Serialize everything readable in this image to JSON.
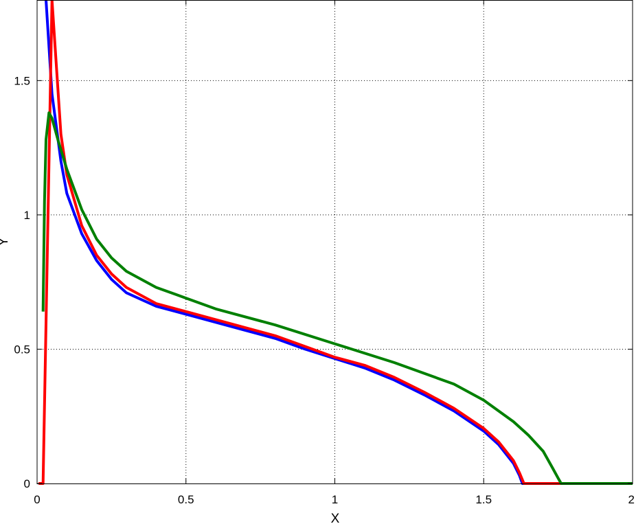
{
  "chart_data": {
    "type": "line",
    "title": "",
    "xlabel": "X",
    "ylabel": "Y",
    "xlim": [
      0,
      2
    ],
    "ylim": [
      0,
      1.8
    ],
    "xticks": [
      0,
      0.5,
      1,
      1.5,
      2
    ],
    "xtick_labels": [
      "0",
      "0.5",
      "1",
      "1.5",
      "2"
    ],
    "yticks": [
      0,
      0.5,
      1,
      1.5
    ],
    "ytick_labels": [
      "0",
      "0.5",
      "1",
      "1.5"
    ],
    "grid": true,
    "legend": "none",
    "series": [
      {
        "color": "#0000ff",
        "x": [
          0.03,
          0.05,
          0.08,
          0.1,
          0.15,
          0.2,
          0.25,
          0.3,
          0.4,
          0.5,
          0.6,
          0.7,
          0.8,
          0.9,
          1.0,
          1.1,
          1.2,
          1.3,
          1.4,
          1.5,
          1.55,
          1.6,
          1.62,
          1.63,
          1.65,
          2.0
        ],
        "y": [
          1.8,
          1.45,
          1.2,
          1.08,
          0.93,
          0.83,
          0.76,
          0.71,
          0.66,
          0.63,
          0.6,
          0.57,
          0.54,
          0.5,
          0.465,
          0.43,
          0.385,
          0.33,
          0.27,
          0.195,
          0.145,
          0.075,
          0.03,
          0.0,
          0.0,
          0.0
        ]
      },
      {
        "color": "#ff0000",
        "x": [
          0.005,
          0.02,
          0.05,
          0.08,
          0.1,
          0.15,
          0.2,
          0.25,
          0.3,
          0.4,
          0.5,
          0.6,
          0.7,
          0.8,
          0.9,
          1.0,
          1.1,
          1.2,
          1.3,
          1.4,
          1.5,
          1.55,
          1.6,
          1.62,
          1.635,
          1.65,
          2.0
        ],
        "y": [
          0.0,
          0.0,
          1.8,
          1.3,
          1.15,
          0.96,
          0.85,
          0.78,
          0.73,
          0.67,
          0.64,
          0.61,
          0.58,
          0.55,
          0.51,
          0.47,
          0.44,
          0.395,
          0.34,
          0.28,
          0.205,
          0.155,
          0.085,
          0.04,
          0.0,
          0.0,
          0.0
        ]
      },
      {
        "color": "#008000",
        "x": [
          0.02,
          0.025,
          0.03,
          0.04,
          0.05,
          0.07,
          0.1,
          0.15,
          0.2,
          0.25,
          0.3,
          0.4,
          0.5,
          0.6,
          0.8,
          1.0,
          1.2,
          1.4,
          1.5,
          1.6,
          1.65,
          1.7,
          1.73,
          1.75,
          1.76,
          2.0
        ],
        "y": [
          0.64,
          1.05,
          1.28,
          1.38,
          1.36,
          1.28,
          1.17,
          1.02,
          0.91,
          0.84,
          0.79,
          0.73,
          0.69,
          0.65,
          0.59,
          0.52,
          0.45,
          0.37,
          0.31,
          0.23,
          0.18,
          0.12,
          0.06,
          0.02,
          0.0,
          0.0
        ]
      }
    ]
  }
}
